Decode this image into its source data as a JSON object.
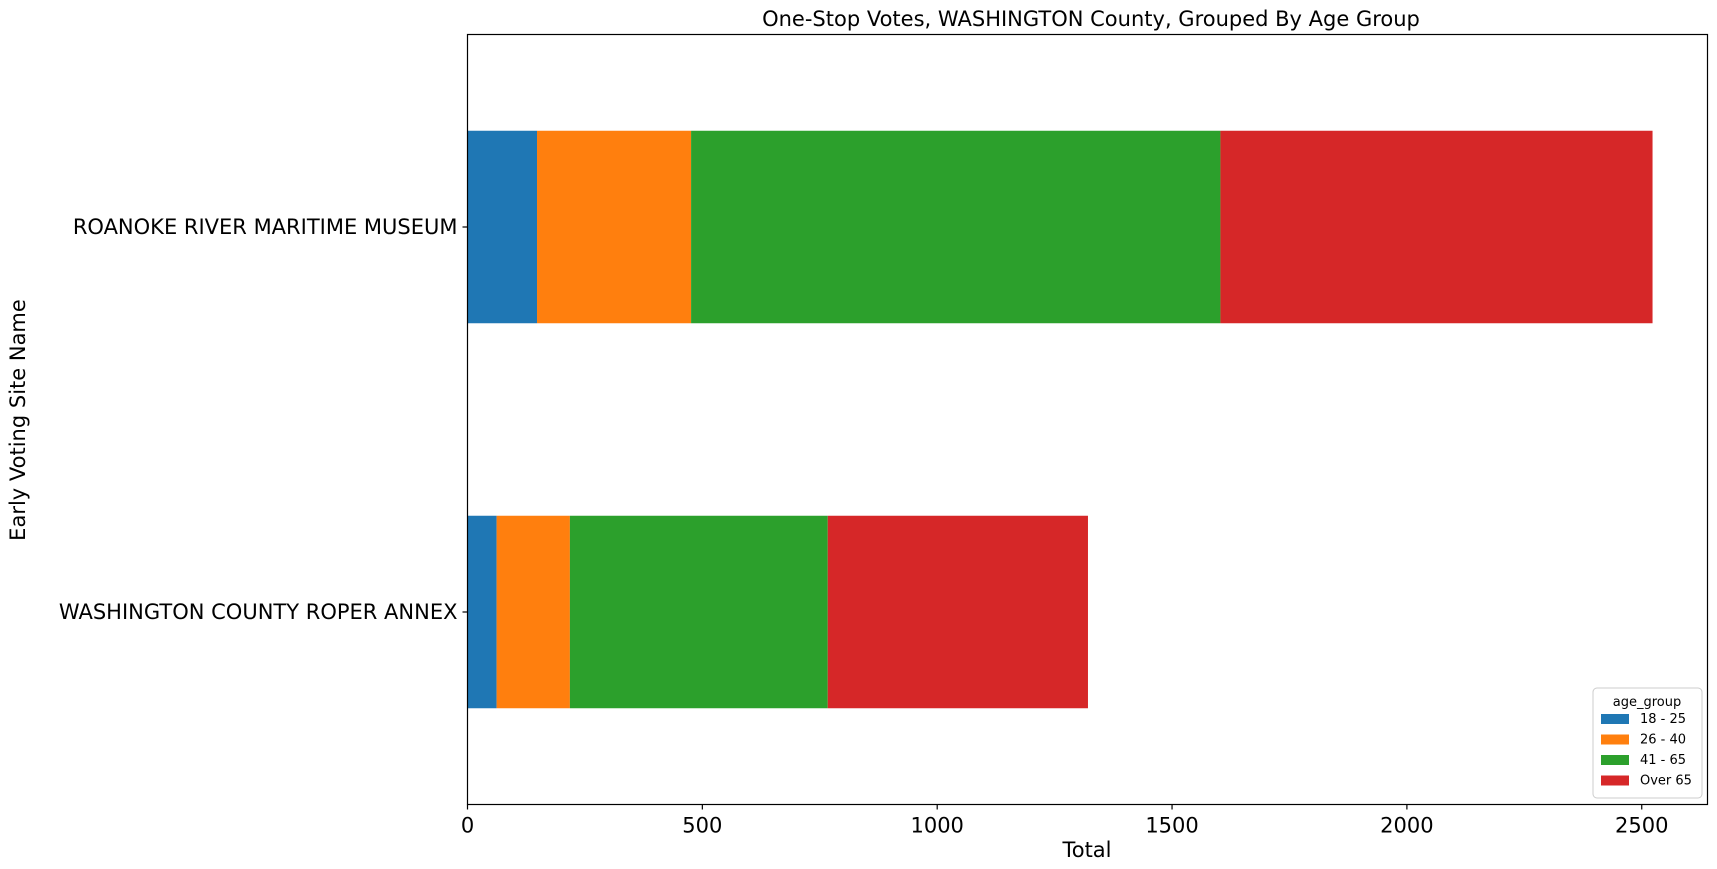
{
  "chart_data": {
    "type": "bar",
    "orientation": "horizontal",
    "stacked": true,
    "title": "One-Stop Votes, WASHINGTON County, Grouped By Age Group",
    "xlabel": "Total",
    "ylabel": "Early Voting Site Name",
    "xlim": [
      0,
      2640
    ],
    "xticks": [
      0,
      500,
      1000,
      1500,
      2000,
      2500
    ],
    "categories": [
      "ROANOKE RIVER MARITIME MUSEUM",
      "WASHINGTON COUNTY ROPER ANNEX"
    ],
    "series": [
      {
        "name": "18 - 25",
        "color": "#1f77b4",
        "values": [
          148,
          62
        ]
      },
      {
        "name": "26 - 40",
        "color": "#ff7f0e",
        "values": [
          328,
          156
        ]
      },
      {
        "name": "41 - 65",
        "color": "#2ca02c",
        "values": [
          1127,
          549
        ]
      },
      {
        "name": "Over 65",
        "color": "#d62728",
        "values": [
          920,
          554
        ]
      }
    ],
    "grid": false,
    "legend": {
      "title": "age_group",
      "placement": "lower-right"
    }
  }
}
